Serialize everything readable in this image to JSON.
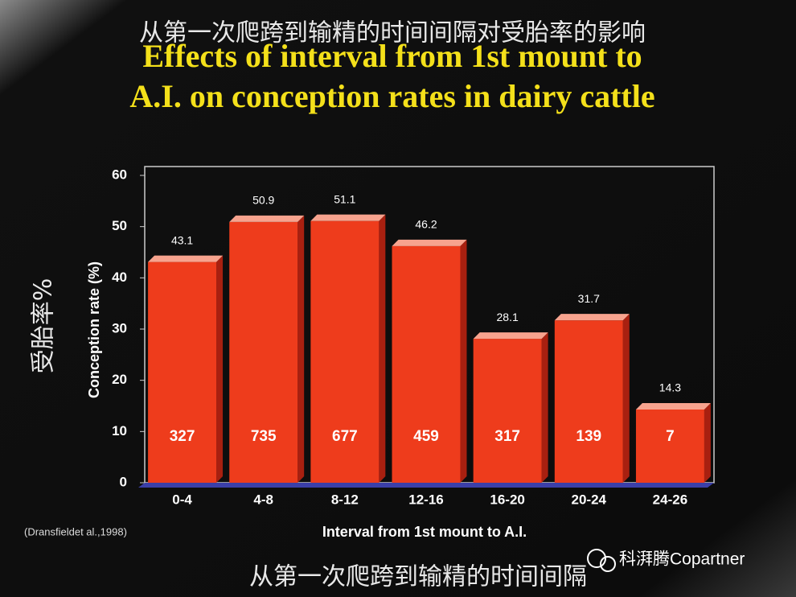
{
  "chart_data": {
    "type": "bar",
    "title_cn": "从第一次爬跨到输精的时间间隔对受胎率的影响",
    "title": [
      "Effects of interval from 1st mount to",
      "A.I. on conception rates in dairy cattle"
    ],
    "ylabel_cn": "受胎率%",
    "ylabel": "Conception rate (%)",
    "xlabel": "Interval from 1st mount to A.I.",
    "source": "(Dransfieldet al.,1998)",
    "footer_cn": "从第一次爬跨到输精的时间间隔",
    "watermark": "科湃腾Copartner",
    "categories": [
      "0-4",
      "4-8",
      "8-12",
      "12-16",
      "16-20",
      "20-24",
      "24-26"
    ],
    "values": [
      43.1,
      50.9,
      51.1,
      46.2,
      28.1,
      31.7,
      14.3
    ],
    "bar_counts": [
      327,
      735,
      677,
      459,
      317,
      139,
      7
    ],
    "color": "#ee3c1c",
    "ylim": [
      0,
      60
    ],
    "yticks": [
      0,
      10,
      20,
      30,
      40,
      50,
      60
    ]
  }
}
